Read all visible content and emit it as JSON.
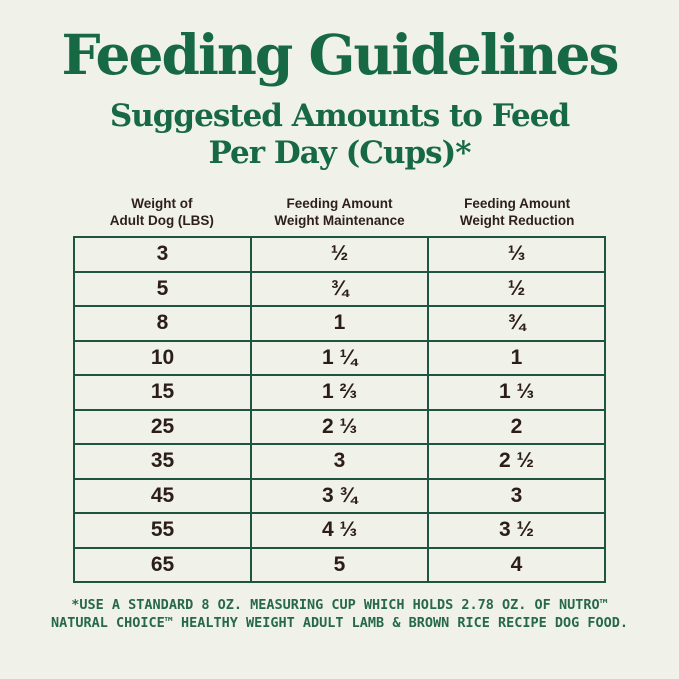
{
  "page": {
    "background_color": "#f0f2e9",
    "accent_green": "#176943",
    "table_border_green": "#1f5440",
    "text_dark": "#2e1e1c"
  },
  "title": "Feeding Guidelines",
  "subtitle_line1": "Suggested Amounts to Feed",
  "subtitle_line2": "Per Day (Cups)*",
  "table": {
    "headers": [
      {
        "line1": "Weight of",
        "line2": "Adult Dog (LBS)"
      },
      {
        "line1": "Feeding Amount",
        "line2": "Weight Maintenance"
      },
      {
        "line1": "Feeding Amount",
        "line2": "Weight Reduction"
      }
    ],
    "rows": [
      {
        "weight": "3",
        "maintenance": "½",
        "reduction": "⅓"
      },
      {
        "weight": "5",
        "maintenance": "¾",
        "reduction": "½"
      },
      {
        "weight": "8",
        "maintenance": "1",
        "reduction": "¾"
      },
      {
        "weight": "10",
        "maintenance": "1 ¼",
        "reduction": "1"
      },
      {
        "weight": "15",
        "maintenance": "1 ⅔",
        "reduction": "1 ⅓"
      },
      {
        "weight": "25",
        "maintenance": "2 ⅓",
        "reduction": "2"
      },
      {
        "weight": "35",
        "maintenance": "3",
        "reduction": "2 ½"
      },
      {
        "weight": "45",
        "maintenance": "3 ¾",
        "reduction": "3"
      },
      {
        "weight": "55",
        "maintenance": "4 ⅓",
        "reduction": "3 ½"
      },
      {
        "weight": "65",
        "maintenance": "5",
        "reduction": "4"
      }
    ]
  },
  "footnote_line1": "*USE A STANDARD 8 OZ. MEASURING CUP WHICH HOLDS 2.78 OZ. OF NUTRO™",
  "footnote_line2": "NATURAL CHOICE™ HEALTHY WEIGHT ADULT LAMB & BROWN RICE RECIPE DOG FOOD.",
  "chart_data": {
    "type": "table",
    "title": "Feeding Guidelines",
    "subtitle": "Suggested Amounts to Feed Per Day (Cups)*",
    "columns": [
      "Weight of Adult Dog (LBS)",
      "Feeding Amount Weight Maintenance",
      "Feeding Amount Weight Reduction"
    ],
    "rows": [
      [
        3,
        "1/2",
        "1/3"
      ],
      [
        5,
        "3/4",
        "1/2"
      ],
      [
        8,
        "1",
        "3/4"
      ],
      [
        10,
        "1 1/4",
        "1"
      ],
      [
        15,
        "1 2/3",
        "1 1/3"
      ],
      [
        25,
        "2 1/3",
        "2"
      ],
      [
        35,
        "3",
        "2 1/2"
      ],
      [
        45,
        "3 3/4",
        "3"
      ],
      [
        55,
        "4 1/3",
        "3 1/2"
      ],
      [
        65,
        "5",
        "4"
      ]
    ],
    "footnote": "*USE A STANDARD 8 OZ. MEASURING CUP WHICH HOLDS 2.78 OZ. OF NUTRO™ NATURAL CHOICE™ HEALTHY WEIGHT ADULT LAMB & BROWN RICE RECIPE DOG FOOD.",
    "units": "cups per day"
  }
}
